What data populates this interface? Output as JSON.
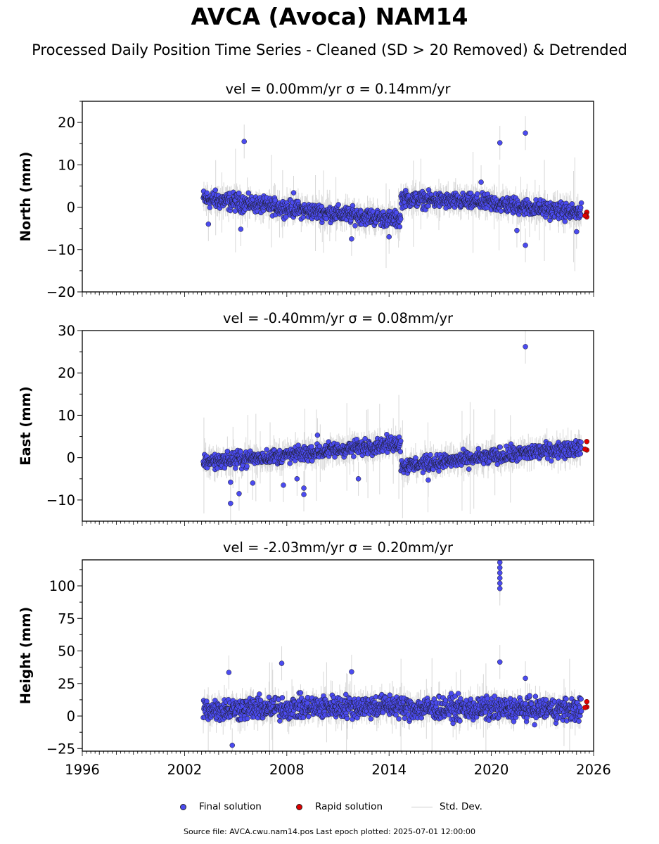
{
  "title": "AVCA (Avoca) NAM14",
  "subtitle": "Processed Daily Position Time Series - Cleaned (SD > 20 Removed) & Detrended",
  "legend": {
    "final": "Final solution",
    "rapid": "Rapid solution",
    "std": "Std. Dev."
  },
  "source_note": "Source file: AVCA.cwu.nam14.pos  Last epoch plotted: 2025-07-01 12:00:00",
  "colors": {
    "final": "#4b4bf0",
    "rapid": "#e00000",
    "std": "#c8c8c8",
    "edge": "#1a1a1a"
  },
  "chart_data": [
    {
      "type": "scatter",
      "title": "vel = 0.00mm/yr   σ = 0.14mm/yr",
      "ylabel": "North (mm)",
      "xlim": [
        1996,
        2026
      ],
      "ylim": [
        -20,
        25
      ],
      "yticks": [
        -20,
        -10,
        0,
        10,
        20
      ],
      "xticks": [
        1996,
        2002,
        2008,
        2014,
        2020,
        2026
      ],
      "segments": [
        {
          "x": [
            2003.1,
            2005.5
          ],
          "y": [
            2.0,
            1.0
          ],
          "spread": 1.8
        },
        {
          "x": [
            2005.5,
            2009.5
          ],
          "y": [
            1.0,
            -1.0
          ],
          "spread": 1.6
        },
        {
          "x": [
            2009.5,
            2014.7
          ],
          "y": [
            -1.0,
            -3.0
          ],
          "spread": 1.6
        },
        {
          "x": [
            2014.7,
            2020.0
          ],
          "y": [
            2.0,
            1.0
          ],
          "spread": 1.6
        },
        {
          "x": [
            2020.0,
            2025.3
          ],
          "y": [
            1.0,
            -1.5
          ],
          "spread": 1.7
        }
      ],
      "outliers": [
        [
          2005.5,
          15.5
        ],
        [
          2020.5,
          15.2
        ],
        [
          2022.0,
          17.5
        ],
        [
          2022.0,
          -9.0
        ],
        [
          2003.4,
          -4.0
        ],
        [
          2005.3,
          -5.2
        ],
        [
          2011.8,
          -7.5
        ],
        [
          2014.0,
          -7.0
        ],
        [
          2021.5,
          -5.5
        ],
        [
          2025.0,
          -5.8
        ],
        [
          2008.4,
          3.4
        ],
        [
          2019.4,
          5.9
        ]
      ],
      "rapid": [
        [
          2025.6,
          -1.2
        ],
        [
          2025.55,
          -1.8
        ],
        [
          2025.6,
          -2.3
        ],
        [
          2025.5,
          -2.0
        ]
      ]
    },
    {
      "type": "scatter",
      "title": "vel = -0.40mm/yr   σ = 0.08mm/yr",
      "ylabel": "East (mm)",
      "xlim": [
        1996,
        2026
      ],
      "ylim": [
        -15,
        30
      ],
      "yticks": [
        -10,
        0,
        10,
        20,
        30
      ],
      "xticks": [
        1996,
        2002,
        2008,
        2014,
        2020,
        2026
      ],
      "segments": [
        {
          "x": [
            2003.1,
            2008.0
          ],
          "y": [
            -1.0,
            0.5
          ],
          "spread": 1.5
        },
        {
          "x": [
            2008.0,
            2014.7
          ],
          "y": [
            0.5,
            3.5
          ],
          "spread": 1.5
        },
        {
          "x": [
            2014.7,
            2019.5
          ],
          "y": [
            -2.0,
            0.0
          ],
          "spread": 1.5
        },
        {
          "x": [
            2019.5,
            2025.3
          ],
          "y": [
            0.0,
            2.5
          ],
          "spread": 1.6
        }
      ],
      "outliers": [
        [
          2022.0,
          26.2
        ],
        [
          2004.7,
          -10.8
        ],
        [
          2005.2,
          -8.5
        ],
        [
          2004.7,
          -5.8
        ],
        [
          2009.0,
          -7.2
        ],
        [
          2009.0,
          -8.7
        ],
        [
          2008.6,
          -5.0
        ],
        [
          2007.8,
          -6.5
        ],
        [
          2006.0,
          -6.0
        ],
        [
          2012.2,
          -5.0
        ],
        [
          2016.3,
          -5.3
        ],
        [
          2009.8,
          5.3
        ]
      ],
      "rapid": [
        [
          2025.6,
          3.8
        ],
        [
          2025.6,
          1.8
        ],
        [
          2025.5,
          2.0
        ]
      ]
    },
    {
      "type": "scatter",
      "title": "vel = -2.03mm/yr   σ = 0.20mm/yr",
      "ylabel": "Height (mm)",
      "xlim": [
        1996,
        2026
      ],
      "ylim": [
        -27,
        120
      ],
      "yticks": [
        -25,
        0,
        25,
        50,
        75,
        100
      ],
      "xticks": [
        1996,
        2002,
        2008,
        2014,
        2020,
        2026
      ],
      "xticklabels": [
        "1996",
        "2002",
        "2008",
        "2014",
        "2020",
        "2026"
      ],
      "segments": [
        {
          "x": [
            2003.1,
            2014.7
          ],
          "y": [
            5.0,
            8.0
          ],
          "spread": 7.5
        },
        {
          "x": [
            2014.7,
            2025.3
          ],
          "y": [
            6.0,
            5.0
          ],
          "spread": 7.5
        }
      ],
      "outliers": [
        [
          2020.5,
          118
        ],
        [
          2020.5,
          114
        ],
        [
          2020.5,
          110
        ],
        [
          2020.5,
          106
        ],
        [
          2020.5,
          102
        ],
        [
          2020.5,
          98
        ],
        [
          2020.5,
          41.5
        ],
        [
          2007.7,
          40.5
        ],
        [
          2004.6,
          33.5
        ],
        [
          2011.8,
          34.0
        ],
        [
          2022.0,
          29.0
        ],
        [
          2004.8,
          -22.5
        ]
      ],
      "rapid": [
        [
          2025.6,
          11.0
        ],
        [
          2025.6,
          7.0
        ],
        [
          2025.5,
          6.5
        ]
      ]
    }
  ]
}
